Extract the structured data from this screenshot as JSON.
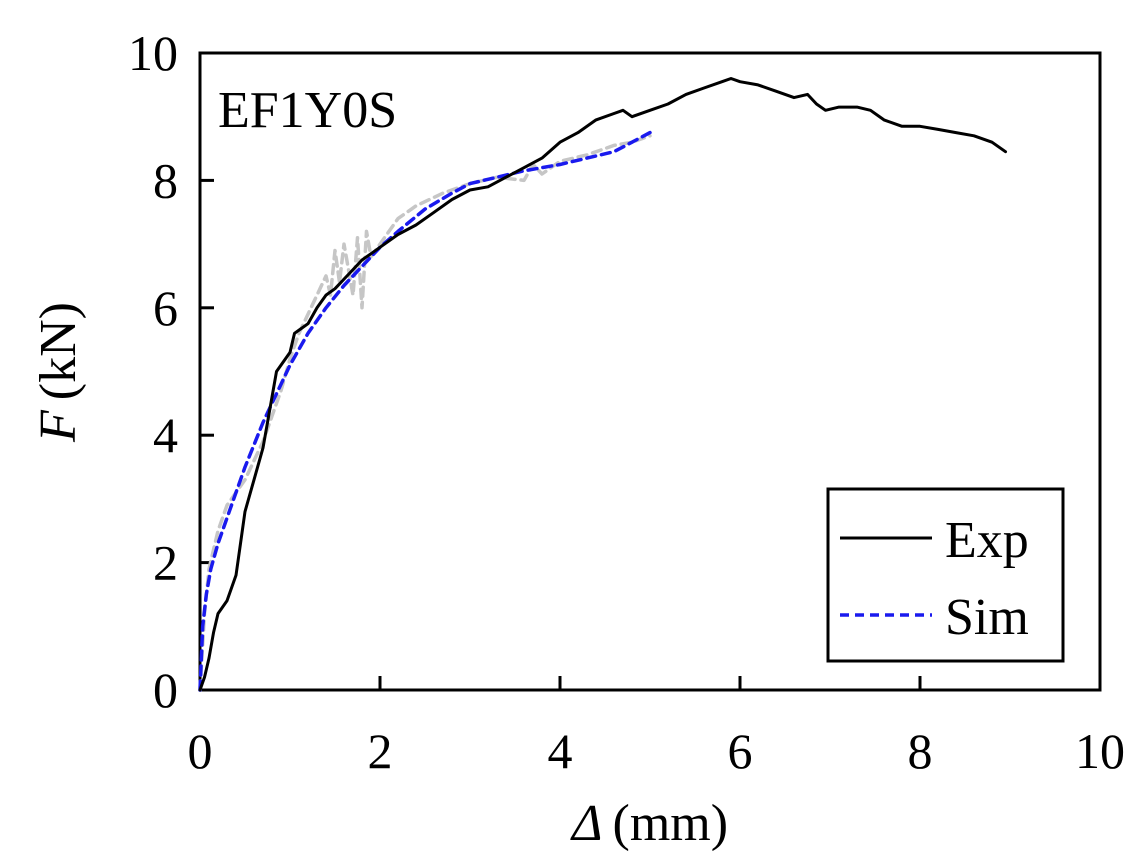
{
  "chart_data": {
    "type": "line",
    "annotation": "EF1Y0S",
    "xlabel": {
      "symbol": "Δ",
      "unit": "(mm)"
    },
    "ylabel": {
      "symbol": "F",
      "unit": "(kN)"
    },
    "xlim": [
      0,
      10
    ],
    "ylim": [
      0,
      10
    ],
    "xticks": [
      0,
      2,
      4,
      6,
      8,
      10
    ],
    "yticks": [
      0,
      2,
      4,
      6,
      8,
      10
    ],
    "xtick_labels": [
      "0",
      "2",
      "4",
      "6",
      "8",
      "10"
    ],
    "ytick_labels": [
      "0",
      "2",
      "4",
      "6",
      "8",
      "10"
    ],
    "grid": false,
    "legend_position": "bottom-right",
    "series": [
      {
        "name": "Exp",
        "color": "#000000",
        "style": "solid",
        "x": [
          0,
          0.05,
          0.1,
          0.15,
          0.2,
          0.3,
          0.4,
          0.45,
          0.5,
          0.6,
          0.7,
          0.75,
          0.8,
          0.85,
          0.9,
          1.0,
          1.05,
          1.1,
          1.2,
          1.3,
          1.4,
          1.5,
          1.6,
          1.7,
          1.8,
          1.9,
          2.0,
          2.2,
          2.4,
          2.6,
          2.8,
          3.0,
          3.2,
          3.4,
          3.6,
          3.8,
          4.0,
          4.2,
          4.4,
          4.6,
          4.7,
          4.8,
          5.0,
          5.2,
          5.4,
          5.6,
          5.8,
          5.9,
          6.0,
          6.2,
          6.4,
          6.6,
          6.75,
          6.85,
          6.95,
          7.1,
          7.3,
          7.45,
          7.6,
          7.8,
          8.0,
          8.2,
          8.4,
          8.6,
          8.8,
          8.95
        ],
        "y": [
          0,
          0.2,
          0.5,
          0.9,
          1.2,
          1.4,
          1.8,
          2.3,
          2.8,
          3.3,
          3.8,
          4.2,
          4.6,
          5.0,
          5.1,
          5.3,
          5.6,
          5.65,
          5.75,
          6.0,
          6.2,
          6.3,
          6.45,
          6.6,
          6.75,
          6.85,
          6.95,
          7.15,
          7.3,
          7.5,
          7.7,
          7.85,
          7.9,
          8.05,
          8.2,
          8.35,
          8.6,
          8.75,
          8.95,
          9.05,
          9.1,
          9.0,
          9.1,
          9.2,
          9.35,
          9.45,
          9.55,
          9.6,
          9.55,
          9.5,
          9.4,
          9.3,
          9.35,
          9.2,
          9.1,
          9.15,
          9.15,
          9.1,
          8.95,
          8.85,
          8.85,
          8.8,
          8.75,
          8.7,
          8.6,
          8.45
        ]
      },
      {
        "name": "Sim",
        "color": "#1a1aee",
        "style": "dashed",
        "x": [
          0,
          0.03,
          0.07,
          0.12,
          0.2,
          0.3,
          0.4,
          0.5,
          0.6,
          0.7,
          0.8,
          0.9,
          1.0,
          1.2,
          1.4,
          1.6,
          1.8,
          2.0,
          2.2,
          2.5,
          2.8,
          3.0,
          3.3,
          3.6,
          4.0,
          4.3,
          4.6,
          4.8,
          5.0
        ],
        "y": [
          0,
          1.0,
          1.5,
          1.9,
          2.3,
          2.7,
          3.1,
          3.5,
          3.85,
          4.2,
          4.5,
          4.8,
          5.1,
          5.6,
          6.0,
          6.35,
          6.65,
          6.95,
          7.2,
          7.55,
          7.8,
          7.95,
          8.05,
          8.15,
          8.25,
          8.35,
          8.45,
          8.6,
          8.75
        ]
      },
      {
        "name": "",
        "color": "#c6c6c6",
        "style": "dashed",
        "x": [
          0,
          0.05,
          0.1,
          0.2,
          0.3,
          0.4,
          0.5,
          0.6,
          0.7,
          0.8,
          0.9,
          1.0,
          1.1,
          1.2,
          1.3,
          1.4,
          1.45,
          1.5,
          1.55,
          1.6,
          1.65,
          1.7,
          1.75,
          1.8,
          1.85,
          1.9,
          2.0,
          2.2,
          2.4,
          2.7,
          3.0,
          3.3,
          3.6,
          3.7,
          3.8,
          4.0,
          4.3,
          4.6,
          4.8,
          5.0
        ],
        "y": [
          0,
          1.2,
          1.9,
          2.5,
          2.9,
          3.1,
          3.3,
          3.6,
          3.9,
          4.3,
          4.7,
          5.2,
          5.6,
          5.9,
          6.2,
          6.5,
          6.2,
          6.9,
          6.4,
          7.0,
          6.6,
          6.2,
          7.1,
          6.0,
          7.2,
          6.8,
          7.0,
          7.4,
          7.6,
          7.8,
          7.95,
          8.05,
          8.0,
          8.25,
          8.1,
          8.3,
          8.4,
          8.55,
          8.6,
          8.7
        ]
      }
    ]
  }
}
